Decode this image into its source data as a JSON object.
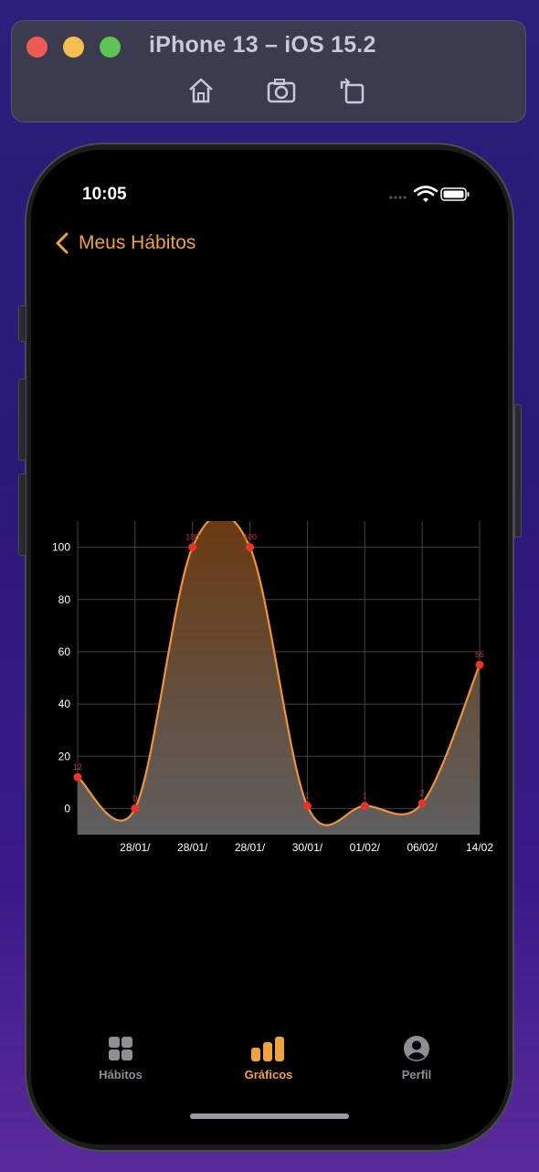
{
  "simulator": {
    "title": "iPhone 13 – iOS 15.2",
    "icons": [
      "home-icon",
      "screenshot-icon",
      "rotate-icon"
    ]
  },
  "status_bar": {
    "time": "10:05"
  },
  "nav": {
    "back_label": "Meus Hábitos"
  },
  "chart_data": {
    "type": "area",
    "x": [
      "",
      "28/01/",
      "28/01/",
      "28/01/",
      "30/01/",
      "01/02/",
      "06/02/",
      "14/02"
    ],
    "values": [
      12,
      0,
      100,
      100,
      1,
      1,
      2,
      55
    ],
    "point_labels": [
      "12",
      "0",
      "100",
      "100",
      "1",
      "1",
      "2",
      "55"
    ],
    "yticks": [
      0,
      20,
      40,
      60,
      80,
      100
    ],
    "ylim": [
      -10,
      110
    ],
    "grid": true,
    "line_color": "#f0943a",
    "point_color": "#e8322a",
    "title": "",
    "xlabel": "",
    "ylabel": ""
  },
  "tabbar": {
    "items": [
      {
        "label": "Hábitos",
        "icon": "grid-icon",
        "active": false
      },
      {
        "label": "Gráficos",
        "icon": "bar-chart-icon",
        "active": true
      },
      {
        "label": "Perfil",
        "icon": "person-icon",
        "active": false
      }
    ],
    "active_color": "#f0a23c",
    "inactive_color": "#8e8e93"
  }
}
